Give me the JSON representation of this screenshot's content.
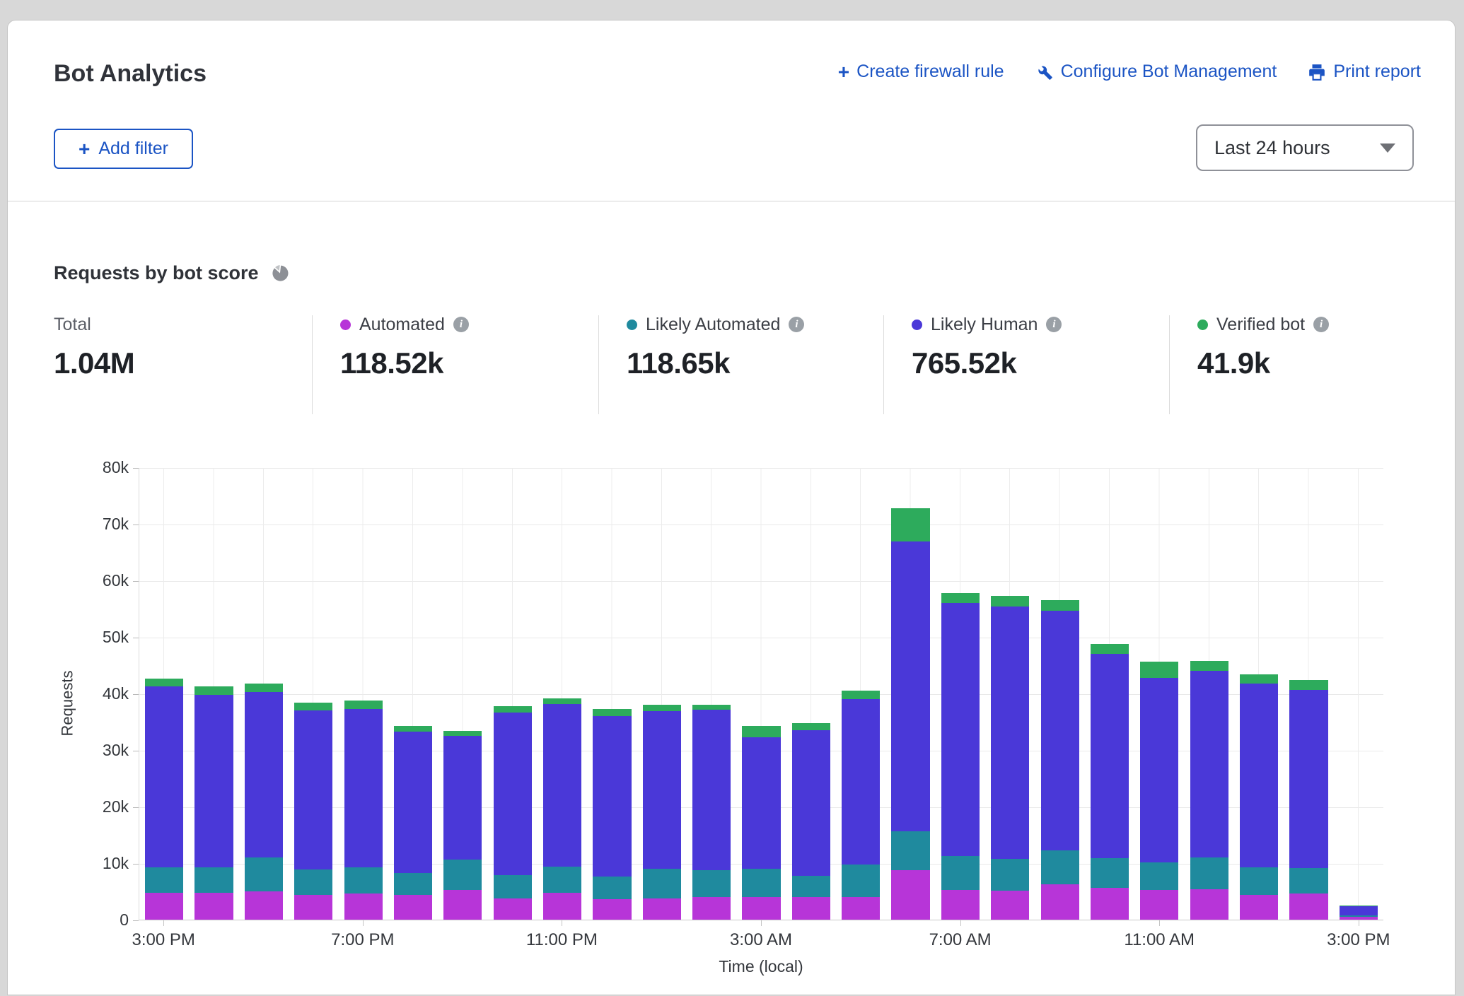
{
  "header": {
    "title": "Bot Analytics",
    "actions": [
      {
        "label": "Create firewall rule",
        "icon": "plus-icon"
      },
      {
        "label": "Configure Bot Management",
        "icon": "wrench-icon"
      },
      {
        "label": "Print report",
        "icon": "printer-icon"
      }
    ],
    "add_filter_label": "Add filter",
    "time_range_selected": "Last 24 hours"
  },
  "section": {
    "title": "Requests by bot score"
  },
  "stats": {
    "total": {
      "label": "Total",
      "value": "1.04M"
    },
    "series": [
      {
        "name": "Automated",
        "value": "118.52k",
        "color": "#b735d8"
      },
      {
        "name": "Likely Automated",
        "value": "118.65k",
        "color": "#1f8a9e"
      },
      {
        "name": "Likely Human",
        "value": "765.52k",
        "color": "#4a38d8"
      },
      {
        "name": "Verified bot",
        "value": "41.9k",
        "color": "#2dab5c"
      }
    ]
  },
  "chart_data": {
    "type": "bar",
    "stacked": true,
    "title": "Requests by bot score",
    "xlabel": "Time (local)",
    "ylabel": "Requests",
    "ylim": [
      0,
      80000
    ],
    "ytick_labels": [
      "0",
      "10k",
      "20k",
      "30k",
      "40k",
      "50k",
      "60k",
      "70k",
      "80k"
    ],
    "grid": "horizontal-10k and vertical-hourly",
    "legend_position": "top-stats-row",
    "categories": [
      "3:00 PM",
      "4:00 PM",
      "5:00 PM",
      "6:00 PM",
      "7:00 PM",
      "8:00 PM",
      "9:00 PM",
      "10:00 PM",
      "11:00 PM",
      "12:00 AM",
      "1:00 AM",
      "2:00 AM",
      "3:00 AM",
      "4:00 AM",
      "5:00 AM",
      "6:00 AM",
      "7:00 AM",
      "8:00 AM",
      "9:00 AM",
      "10:00 AM",
      "11:00 AM",
      "12:00 PM",
      "1:00 PM",
      "2:00 PM",
      "3:00 PM"
    ],
    "x_tick_indices": [
      0,
      4,
      8,
      12,
      16,
      20,
      24
    ],
    "series": [
      {
        "name": "Automated",
        "color": "#b735d8",
        "values": [
          4700,
          4800,
          5000,
          4400,
          4600,
          4400,
          5300,
          3700,
          4700,
          3600,
          3800,
          4000,
          4000,
          4000,
          4000,
          8700,
          5300,
          5100,
          6300,
          5600,
          5300,
          5400,
          4400,
          4600,
          500
        ]
      },
      {
        "name": "Likely Automated",
        "color": "#1f8a9e",
        "values": [
          4500,
          4500,
          6000,
          4500,
          4700,
          3800,
          5300,
          4200,
          4700,
          4000,
          5200,
          4700,
          5000,
          3700,
          5700,
          6900,
          6000,
          5600,
          5900,
          5300,
          4800,
          5600,
          4900,
          4500,
          200
        ]
      },
      {
        "name": "Likely Human",
        "color": "#4a38d8",
        "values": [
          32100,
          30500,
          29200,
          28100,
          28000,
          25100,
          21900,
          28700,
          28700,
          28400,
          27900,
          28400,
          23200,
          25800,
          29300,
          51300,
          44700,
          44700,
          42400,
          36100,
          32600,
          33000,
          32400,
          31500,
          1700
        ]
      },
      {
        "name": "Verified bot",
        "color": "#2dab5c",
        "values": [
          1300,
          1400,
          1500,
          1400,
          1400,
          1000,
          900,
          1100,
          1000,
          1200,
          1100,
          900,
          2000,
          1200,
          1500,
          5800,
          1800,
          1900,
          1900,
          1800,
          2900,
          1800,
          1700,
          1800,
          100
        ]
      }
    ]
  }
}
